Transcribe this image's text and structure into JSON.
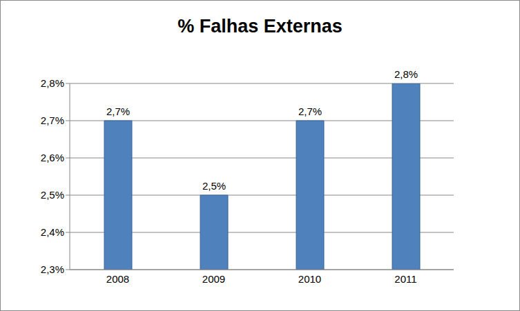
{
  "chart_data": {
    "type": "bar",
    "title": "% Falhas Externas",
    "categories": [
      "2008",
      "2009",
      "2010",
      "2011"
    ],
    "values": [
      2.7,
      2.5,
      2.7,
      2.8
    ],
    "value_labels": [
      "2,7%",
      "2,5%",
      "2,7%",
      "2,8%"
    ],
    "color": "#4f81bd",
    "ylim": [
      2.3,
      2.8
    ],
    "yticks": [
      {
        "value": 2.3,
        "label": "2,3%"
      },
      {
        "value": 2.4,
        "label": "2,4%"
      },
      {
        "value": 2.5,
        "label": "2,5%"
      },
      {
        "value": 2.6,
        "label": "2,6%"
      },
      {
        "value": 2.7,
        "label": "2,7%"
      },
      {
        "value": 2.8,
        "label": "2,8%"
      }
    ],
    "grid": true,
    "data_labels": true
  }
}
